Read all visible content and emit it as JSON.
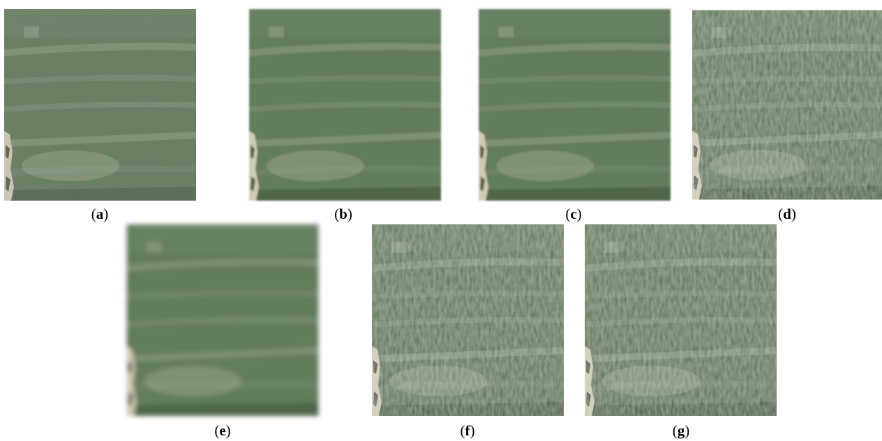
{
  "figure": {
    "panels": [
      {
        "label": "(a)"
      },
      {
        "label": "(b)"
      },
      {
        "label": "(c)"
      },
      {
        "label": "(d)"
      },
      {
        "label": "(e)"
      },
      {
        "label": "(f)"
      },
      {
        "label": "(g)"
      }
    ]
  }
}
